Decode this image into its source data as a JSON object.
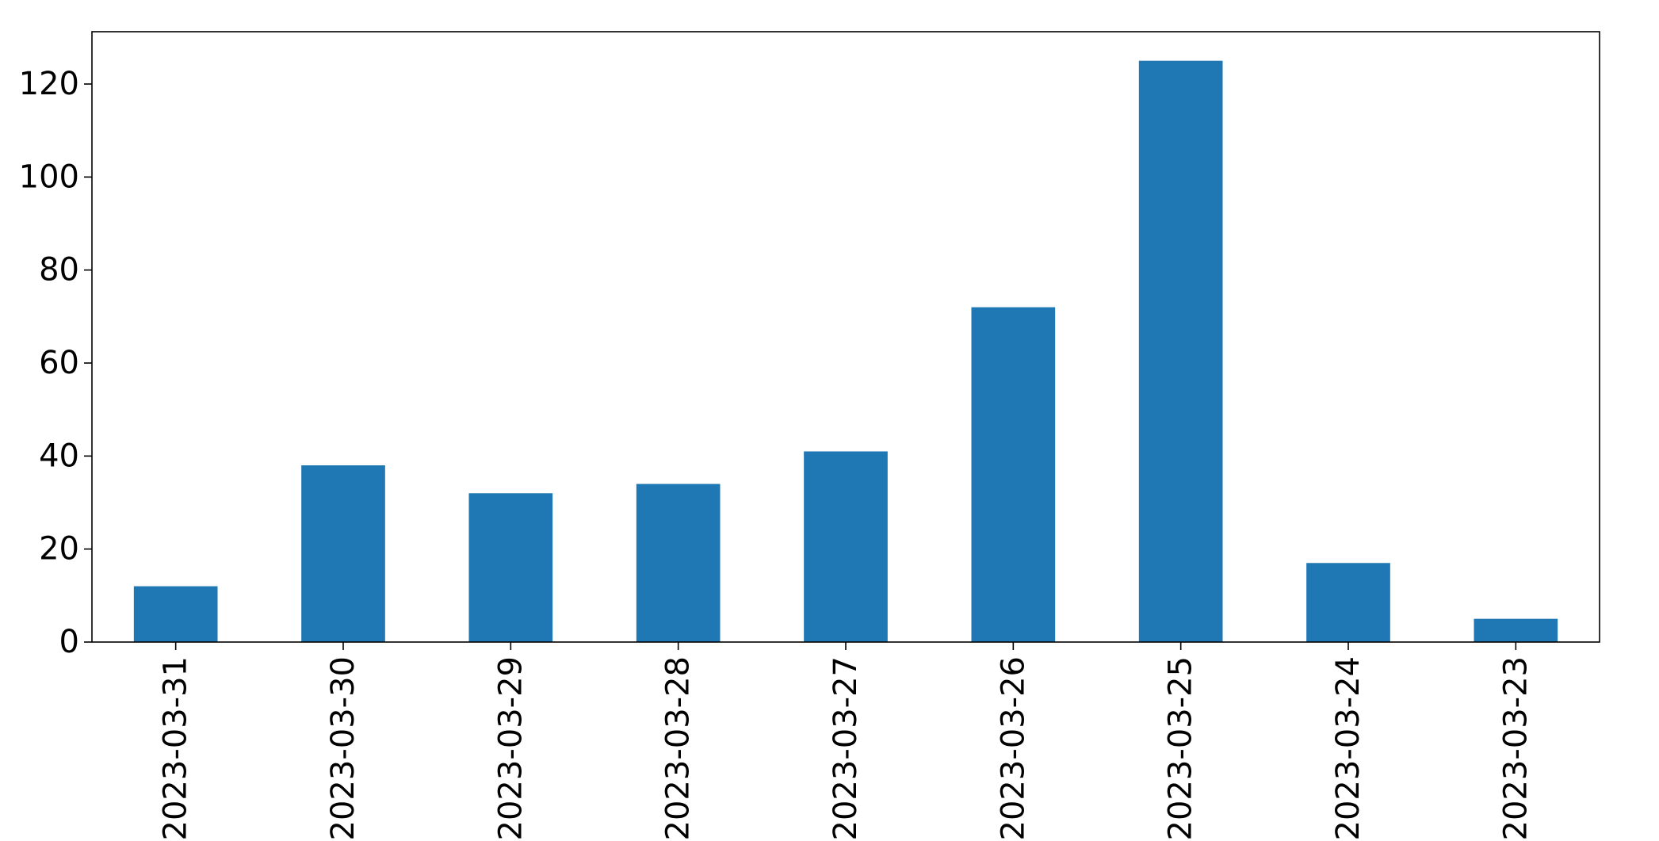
{
  "chart_data": {
    "type": "bar",
    "categories": [
      "2023-03-31",
      "2023-03-30",
      "2023-03-29",
      "2023-03-28",
      "2023-03-27",
      "2023-03-26",
      "2023-03-25",
      "2023-03-24",
      "2023-03-23"
    ],
    "values": [
      12,
      38,
      32,
      34,
      41,
      72,
      125,
      17,
      5
    ],
    "title": "",
    "xlabel": "",
    "ylabel": "",
    "ylim": [
      0,
      131.25
    ],
    "yticks": [
      0,
      20,
      40,
      60,
      80,
      100,
      120
    ],
    "grid": false,
    "legend": "none",
    "bar_color": "#1f77b4"
  }
}
